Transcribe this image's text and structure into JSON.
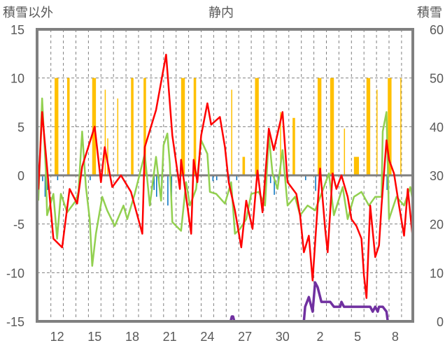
{
  "chart_data": {
    "type": "line",
    "title": "静内",
    "ylabel_left": "積雪以外",
    "ylabel_right": "積雪",
    "ylim_left": [
      -15,
      15
    ],
    "ylim_right": [
      0,
      60
    ],
    "yticks_left": [
      "15",
      "10",
      "5",
      "0",
      "-5",
      "-10",
      "-15"
    ],
    "yticks_right": [
      "60",
      "50",
      "40",
      "30",
      "20",
      "10",
      "0"
    ],
    "xlim_days": [
      10.4,
      40.4
    ],
    "xtick_days": [
      12,
      15,
      18,
      21,
      24,
      27,
      30,
      33,
      36,
      39
    ],
    "xtick_labels": [
      "12",
      "15",
      "18",
      "21",
      "24",
      "27",
      "30",
      "2",
      "5",
      "8"
    ],
    "grid": true,
    "colors": {
      "red": "#FF0000",
      "green": "#92D050",
      "precip": "#FFC000",
      "negative": "#0070C0",
      "snow": "#7030A0",
      "axis": "#808080"
    },
    "series": [
      {
        "name": "red-line",
        "axis": "left",
        "type": "line",
        "points": [
          [
            10.4,
            3.6
          ],
          [
            10.5,
            -1.4
          ],
          [
            10.8,
            6.5
          ],
          [
            11.7,
            -6.5
          ],
          [
            12.4,
            -7.4
          ],
          [
            13.0,
            -1.4
          ],
          [
            13.6,
            -2.9
          ],
          [
            14.0,
            0.9
          ],
          [
            15.0,
            5.0
          ],
          [
            15.5,
            -0.7
          ],
          [
            15.8,
            2.9
          ],
          [
            16.4,
            -1.2
          ],
          [
            17.1,
            0
          ],
          [
            17.9,
            -1.7
          ],
          [
            18.8,
            -6
          ],
          [
            19.0,
            2.9
          ],
          [
            19.9,
            6.7
          ],
          [
            20.7,
            12.4
          ],
          [
            21.2,
            4.1
          ],
          [
            21.8,
            -1.4
          ],
          [
            21.9,
            1.6
          ],
          [
            22.7,
            -6
          ],
          [
            22.9,
            1.6
          ],
          [
            23.2,
            -0.7
          ],
          [
            23.5,
            4.1
          ],
          [
            24.0,
            7.4
          ],
          [
            24.3,
            5.2
          ],
          [
            25.0,
            6
          ],
          [
            25.4,
            2.9
          ],
          [
            25.7,
            -0.7
          ],
          [
            26.2,
            -3.6
          ],
          [
            26.7,
            -7.4
          ],
          [
            27.1,
            -2.6
          ],
          [
            27.6,
            -5.5
          ],
          [
            28.0,
            0.5
          ],
          [
            28.4,
            -3.8
          ],
          [
            28.9,
            4.8
          ],
          [
            29.3,
            2.6
          ],
          [
            30.0,
            6.5
          ],
          [
            30.4,
            -0.7
          ],
          [
            31.1,
            -1.9
          ],
          [
            31.4,
            -4.1
          ],
          [
            31.7,
            -7.9
          ],
          [
            32.1,
            -6.2
          ],
          [
            32.4,
            -10.8
          ],
          [
            33.0,
            0.7
          ],
          [
            33.4,
            -5.5
          ],
          [
            33.6,
            -7.9
          ],
          [
            34.0,
            0.2
          ],
          [
            34.3,
            -1.4
          ],
          [
            34.7,
            0
          ],
          [
            35.2,
            -2.2
          ],
          [
            35.5,
            -4.5
          ],
          [
            35.9,
            -5.2
          ],
          [
            36.3,
            -6.5
          ],
          [
            36.5,
            -10.3
          ],
          [
            36.7,
            -12.6
          ],
          [
            37.0,
            -3.1
          ],
          [
            37.4,
            -8.4
          ],
          [
            37.7,
            -7.2
          ],
          [
            37.9,
            -3.1
          ],
          [
            38.3,
            3.6
          ],
          [
            38.5,
            1.6
          ],
          [
            38.9,
            0.2
          ],
          [
            39.3,
            -3.1
          ],
          [
            39.7,
            -6.2
          ],
          [
            40.0,
            -1.4
          ],
          [
            40.4,
            -6.5
          ]
        ]
      },
      {
        "name": "green-line",
        "axis": "left",
        "type": "line",
        "points": [
          [
            10.5,
            -2.6
          ],
          [
            10.8,
            7.9
          ],
          [
            11.1,
            0.5
          ],
          [
            11.2,
            -4.1
          ],
          [
            11.7,
            -1.9
          ],
          [
            12.0,
            -6.5
          ],
          [
            12.3,
            -1.9
          ],
          [
            12.8,
            -3.8
          ],
          [
            13.5,
            -2.6
          ],
          [
            13.7,
            -1.7
          ],
          [
            14.0,
            4.5
          ],
          [
            14.3,
            -1.2
          ],
          [
            14.6,
            -4.5
          ],
          [
            14.8,
            -9.3
          ],
          [
            15.1,
            -6
          ],
          [
            15.6,
            -2.2
          ],
          [
            16.0,
            -3.6
          ],
          [
            16.6,
            -5.2
          ],
          [
            17.3,
            -3.1
          ],
          [
            17.6,
            -4.5
          ],
          [
            18.2,
            -1.9
          ],
          [
            19.0,
            2.2
          ],
          [
            19.4,
            -3.1
          ],
          [
            19.9,
            1.9
          ],
          [
            20.3,
            -2.6
          ],
          [
            20.5,
            3.1
          ],
          [
            20.8,
            4.3
          ],
          [
            21.0,
            1.2
          ],
          [
            21.2,
            -4.8
          ],
          [
            21.9,
            -5.7
          ],
          [
            22.3,
            -0.7
          ],
          [
            22.6,
            -3.1
          ],
          [
            23.1,
            -1.4
          ],
          [
            23.5,
            3.6
          ],
          [
            24.0,
            2.2
          ],
          [
            24.2,
            -1.7
          ],
          [
            24.7,
            -1.9
          ],
          [
            25.4,
            -2.9
          ],
          [
            25.9,
            -0.7
          ],
          [
            26.2,
            -6
          ],
          [
            26.6,
            -5.5
          ],
          [
            27.1,
            -4.5
          ],
          [
            27.5,
            -1.9
          ],
          [
            28.1,
            -1.7
          ],
          [
            28.6,
            -3.1
          ],
          [
            28.9,
            4.1
          ],
          [
            29.2,
            0.2
          ],
          [
            29.6,
            -1.4
          ],
          [
            30.0,
            2.6
          ],
          [
            30.4,
            -3.1
          ],
          [
            31.0,
            -2.2
          ],
          [
            31.4,
            -4.1
          ],
          [
            32.0,
            -3.1
          ],
          [
            32.6,
            -3.6
          ],
          [
            33.1,
            -1.9
          ],
          [
            33.7,
            0.2
          ],
          [
            34.1,
            -4.1
          ],
          [
            34.8,
            -1.2
          ],
          [
            35.2,
            -4.5
          ],
          [
            35.7,
            -2.2
          ],
          [
            36.3,
            -1.7
          ],
          [
            36.9,
            -3.1
          ],
          [
            37.4,
            -2.2
          ],
          [
            37.9,
            -2.2
          ],
          [
            38.0,
            4.5
          ],
          [
            38.3,
            6.5
          ],
          [
            38.5,
            -4.5
          ],
          [
            39.1,
            -2.2
          ],
          [
            39.7,
            -3.1
          ],
          [
            40.2,
            -1.2
          ],
          [
            40.4,
            -2.6
          ]
        ]
      },
      {
        "name": "precip-bars",
        "axis": "left",
        "type": "bar",
        "bars": [
          [
            11.8,
            12.1,
            10
          ],
          [
            12.8,
            13.0,
            10
          ],
          [
            14.8,
            15.1,
            10
          ],
          [
            15.8,
            15.85,
            8.8
          ],
          [
            16.0,
            16.05,
            3.8
          ],
          [
            16.8,
            16.85,
            7.9
          ],
          [
            17.9,
            18.1,
            10
          ],
          [
            18.9,
            19.1,
            10
          ],
          [
            21.9,
            22.2,
            10
          ],
          [
            22.9,
            23.1,
            10
          ],
          [
            25.9,
            25.95,
            8.8
          ],
          [
            26.8,
            27.0,
            1.9
          ],
          [
            27.8,
            28.1,
            10
          ],
          [
            29.8,
            29.85,
            6.5
          ],
          [
            30.8,
            31.0,
            5.9
          ],
          [
            32.8,
            33.1,
            10
          ],
          [
            33.8,
            34.1,
            10
          ],
          [
            34.9,
            34.95,
            4.8
          ],
          [
            35.7,
            36.1,
            1.9
          ],
          [
            36.7,
            37.0,
            10
          ],
          [
            37.5,
            37.55,
            8.8
          ],
          [
            38.4,
            38.7,
            10
          ],
          [
            39.4,
            39.45,
            10
          ]
        ]
      },
      {
        "name": "negative-bars",
        "axis": "left",
        "type": "bar",
        "bars": [
          [
            10.8,
            10.85,
            -0.6
          ],
          [
            11.0,
            11.05,
            -2.2
          ],
          [
            11.2,
            11.25,
            -1.5
          ],
          [
            12.0,
            12.05,
            -0.5
          ],
          [
            14.2,
            14.25,
            -0.5
          ],
          [
            14.6,
            14.65,
            -0.5
          ],
          [
            19.7,
            19.75,
            -1.5
          ],
          [
            19.9,
            19.95,
            -2.2
          ],
          [
            20.1,
            20.15,
            -1.0
          ],
          [
            20.3,
            20.35,
            -1.6
          ],
          [
            20.8,
            20.85,
            -3.1
          ],
          [
            21.1,
            21.15,
            -2.2
          ],
          [
            24.4,
            24.45,
            -0.6
          ],
          [
            24.7,
            24.75,
            -0.5
          ],
          [
            25.7,
            25.75,
            -1.0
          ],
          [
            26.3,
            26.35,
            -0.5
          ],
          [
            29.0,
            29.05,
            -0.8
          ],
          [
            29.3,
            29.35,
            -2.0
          ],
          [
            29.6,
            29.65,
            -1.0
          ],
          [
            30.2,
            30.25,
            -0.5
          ],
          [
            31.8,
            31.85,
            -0.5
          ],
          [
            32.6,
            32.65,
            -1.6
          ],
          [
            38.3,
            38.35,
            -1.5
          ],
          [
            38.4,
            38.45,
            -1.0
          ]
        ]
      },
      {
        "name": "snow-depth",
        "axis": "right",
        "type": "line",
        "points": [
          [
            10.4,
            0
          ],
          [
            25.85,
            0
          ],
          [
            25.95,
            1
          ],
          [
            26.05,
            1
          ],
          [
            26.15,
            0
          ],
          [
            31.7,
            0
          ],
          [
            31.8,
            3
          ],
          [
            32.1,
            5
          ],
          [
            32.3,
            3
          ],
          [
            32.4,
            2
          ],
          [
            32.6,
            8
          ],
          [
            32.8,
            7
          ],
          [
            33.1,
            4
          ],
          [
            33.8,
            4
          ],
          [
            34.1,
            3
          ],
          [
            34.6,
            3
          ],
          [
            34.7,
            4
          ],
          [
            34.9,
            3
          ],
          [
            37.0,
            3
          ],
          [
            37.2,
            2
          ],
          [
            37.4,
            3
          ],
          [
            37.6,
            2
          ],
          [
            37.7,
            3
          ],
          [
            38.0,
            3
          ],
          [
            38.3,
            2
          ],
          [
            38.4,
            0
          ],
          [
            40.4,
            0
          ]
        ]
      }
    ]
  }
}
